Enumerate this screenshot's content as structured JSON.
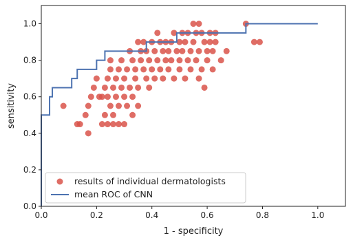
{
  "chart_data": {
    "type": "scatter",
    "title": "",
    "xlabel": "1 - specificity",
    "ylabel": "sensitivity",
    "xlim": [
      0.0,
      1.1
    ],
    "ylim": [
      0.0,
      1.1
    ],
    "xticks": [
      "0.0",
      "0.2",
      "0.4",
      "0.6",
      "0.8",
      "1.0"
    ],
    "yticks": [
      "0.0",
      "0.2",
      "0.4",
      "0.6",
      "0.8",
      "1.0"
    ],
    "grid": false,
    "legend_position": "lower-left",
    "series": [
      {
        "name": "results of individual dermatologists",
        "kind": "scatter",
        "color": "#d9534a",
        "points": [
          [
            0.08,
            0.55
          ],
          [
            0.13,
            0.45
          ],
          [
            0.14,
            0.45
          ],
          [
            0.16,
            0.5
          ],
          [
            0.17,
            0.4
          ],
          [
            0.17,
            0.55
          ],
          [
            0.18,
            0.6
          ],
          [
            0.19,
            0.65
          ],
          [
            0.2,
            0.7
          ],
          [
            0.21,
            0.6
          ],
          [
            0.22,
            0.6
          ],
          [
            0.22,
            0.45
          ],
          [
            0.23,
            0.5
          ],
          [
            0.23,
            0.65
          ],
          [
            0.24,
            0.6
          ],
          [
            0.24,
            0.7
          ],
          [
            0.24,
            0.45
          ],
          [
            0.25,
            0.75
          ],
          [
            0.25,
            0.8
          ],
          [
            0.25,
            0.55
          ],
          [
            0.26,
            0.65
          ],
          [
            0.26,
            0.5
          ],
          [
            0.26,
            0.45
          ],
          [
            0.27,
            0.7
          ],
          [
            0.27,
            0.6
          ],
          [
            0.28,
            0.75
          ],
          [
            0.28,
            0.55
          ],
          [
            0.28,
            0.45
          ],
          [
            0.29,
            0.65
          ],
          [
            0.29,
            0.8
          ],
          [
            0.3,
            0.7
          ],
          [
            0.3,
            0.45
          ],
          [
            0.3,
            0.6
          ],
          [
            0.31,
            0.75
          ],
          [
            0.31,
            0.55
          ],
          [
            0.32,
            0.65
          ],
          [
            0.32,
            0.85
          ],
          [
            0.33,
            0.8
          ],
          [
            0.33,
            0.6
          ],
          [
            0.33,
            0.5
          ],
          [
            0.34,
            0.7
          ],
          [
            0.34,
            0.75
          ],
          [
            0.35,
            0.9
          ],
          [
            0.35,
            0.65
          ],
          [
            0.35,
            0.55
          ],
          [
            0.36,
            0.8
          ],
          [
            0.36,
            0.85
          ],
          [
            0.37,
            0.75
          ],
          [
            0.37,
            0.9
          ],
          [
            0.38,
            0.7
          ],
          [
            0.38,
            0.85
          ],
          [
            0.39,
            0.8
          ],
          [
            0.39,
            0.65
          ],
          [
            0.4,
            0.75
          ],
          [
            0.4,
            0.9
          ],
          [
            0.41,
            0.7
          ],
          [
            0.41,
            0.85
          ],
          [
            0.42,
            0.8
          ],
          [
            0.42,
            0.95
          ],
          [
            0.43,
            0.75
          ],
          [
            0.43,
            0.9
          ],
          [
            0.44,
            0.85
          ],
          [
            0.44,
            0.7
          ],
          [
            0.45,
            0.8
          ],
          [
            0.45,
            0.9
          ],
          [
            0.46,
            0.75
          ],
          [
            0.46,
            0.85
          ],
          [
            0.47,
            0.9
          ],
          [
            0.47,
            0.8
          ],
          [
            0.48,
            0.95
          ],
          [
            0.48,
            0.7
          ],
          [
            0.49,
            0.85
          ],
          [
            0.5,
            0.9
          ],
          [
            0.5,
            0.8
          ],
          [
            0.5,
            0.75
          ],
          [
            0.51,
            0.95
          ],
          [
            0.51,
            0.85
          ],
          [
            0.52,
            0.9
          ],
          [
            0.52,
            0.7
          ],
          [
            0.53,
            0.8
          ],
          [
            0.53,
            0.95
          ],
          [
            0.54,
            0.85
          ],
          [
            0.54,
            0.75
          ],
          [
            0.55,
            1.0
          ],
          [
            0.55,
            0.9
          ],
          [
            0.56,
            0.95
          ],
          [
            0.56,
            0.8
          ],
          [
            0.57,
            1.0
          ],
          [
            0.57,
            0.85
          ],
          [
            0.57,
            0.7
          ],
          [
            0.58,
            0.95
          ],
          [
            0.58,
            0.75
          ],
          [
            0.59,
            0.9
          ],
          [
            0.59,
            0.65
          ],
          [
            0.6,
            0.85
          ],
          [
            0.6,
            0.8
          ],
          [
            0.61,
            0.95
          ],
          [
            0.61,
            0.9
          ],
          [
            0.62,
            0.75
          ],
          [
            0.62,
            0.85
          ],
          [
            0.63,
            0.95
          ],
          [
            0.63,
            0.9
          ],
          [
            0.65,
            0.8
          ],
          [
            0.67,
            0.85
          ],
          [
            0.74,
            1.0
          ],
          [
            0.77,
            0.9
          ],
          [
            0.79,
            0.9
          ]
        ]
      },
      {
        "name": "mean ROC of CNN",
        "kind": "line",
        "color": "#4c72b0",
        "points": [
          [
            0.0,
            0.0
          ],
          [
            0.0,
            0.5
          ],
          [
            0.03,
            0.5
          ],
          [
            0.03,
            0.6
          ],
          [
            0.04,
            0.6
          ],
          [
            0.04,
            0.65
          ],
          [
            0.11,
            0.65
          ],
          [
            0.11,
            0.7
          ],
          [
            0.13,
            0.7
          ],
          [
            0.13,
            0.75
          ],
          [
            0.2,
            0.75
          ],
          [
            0.2,
            0.8
          ],
          [
            0.23,
            0.8
          ],
          [
            0.23,
            0.85
          ],
          [
            0.38,
            0.85
          ],
          [
            0.38,
            0.9
          ],
          [
            0.49,
            0.9
          ],
          [
            0.49,
            0.95
          ],
          [
            0.74,
            0.95
          ],
          [
            0.74,
            1.0
          ],
          [
            1.0,
            1.0
          ]
        ]
      }
    ]
  }
}
